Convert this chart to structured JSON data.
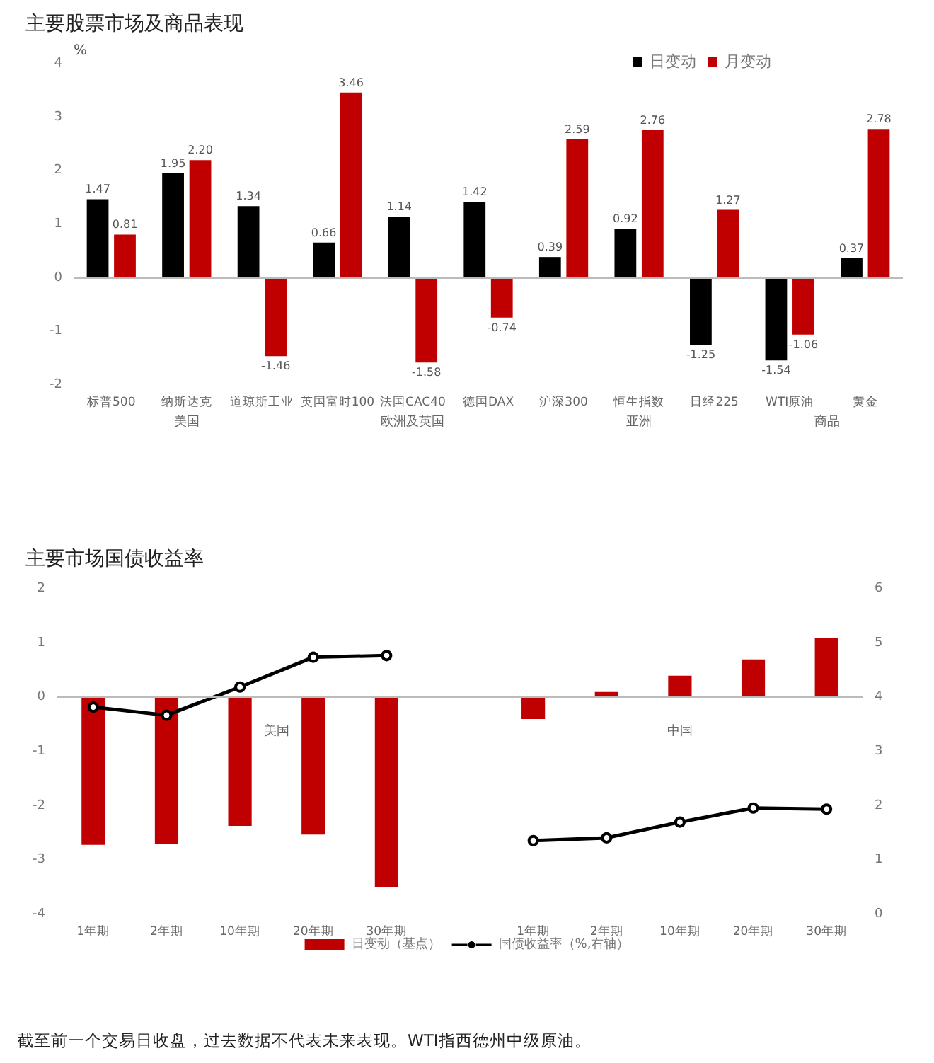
{
  "chart_data": [
    {
      "type": "bar",
      "title": "主要股票市场及商品表现",
      "ylabel": "%",
      "categories": [
        "标普500",
        "纳斯达克",
        "道琼斯工业",
        "英国富时100",
        "法国CAC40",
        "德国DAX",
        "沪深300",
        "恒生指数",
        "日经225",
        "WTI原油",
        "黄金"
      ],
      "series": [
        {
          "name": "日变动",
          "color": "#000000",
          "values": [
            1.47,
            1.95,
            1.34,
            0.66,
            1.14,
            1.42,
            0.39,
            0.92,
            -1.25,
            -1.54,
            0.37
          ],
          "value_labels": [
            "1.47",
            "1.95",
            "1.34",
            "0.66",
            "1.14",
            "1.42",
            "0.39",
            "0.92",
            "-1.25",
            "-1.54",
            "0.37"
          ]
        },
        {
          "name": "月变动",
          "color": "#c00000",
          "values": [
            0.81,
            2.2,
            -1.46,
            3.46,
            -1.58,
            -0.74,
            2.59,
            2.76,
            1.27,
            -1.06,
            2.78
          ],
          "value_labels": [
            "0.81",
            "2.20",
            "-1.46",
            "3.46",
            "-1.58",
            "-0.74",
            "2.59",
            "2.76",
            "1.27",
            "-1.06",
            "2.78"
          ]
        }
      ],
      "ylim": [
        -2,
        4
      ],
      "yticks": [
        -2,
        -1,
        0,
        1,
        2,
        3,
        4
      ],
      "legend": "top right",
      "grid": false,
      "ref_lines": [
        {
          "axis": "y",
          "value": 0,
          "color": "#bbbbbb"
        }
      ],
      "annotations": [
        "美国",
        "欧洲及英国",
        "亚洲",
        "商品"
      ]
    },
    {
      "type": "bar",
      "title": "主要市场国债收益率",
      "categories": [
        "1年期",
        "2年期",
        "10年期",
        "20年期",
        "30年期",
        null,
        "1年期",
        "2年期",
        "10年期",
        "20年期",
        "30年期"
      ],
      "series": [
        {
          "name": "日变动（基点）",
          "type": "bar",
          "color": "#c00000",
          "values": [
            -2.72,
            -2.7,
            -2.37,
            -2.53,
            -3.5,
            null,
            -0.4,
            0.1,
            0.4,
            0.7,
            1.1
          ]
        },
        {
          "name": "国债收益率（%,右轴）",
          "type": "line",
          "axis": "y2",
          "color": "#000000",
          "values": [
            3.82,
            3.67,
            4.19,
            4.74,
            4.77,
            null,
            1.36,
            1.41,
            1.7,
            1.96,
            1.94
          ]
        }
      ],
      "ylim": [
        -4,
        2
      ],
      "yticks": [
        -4,
        -3,
        -2,
        -1,
        0,
        1,
        2
      ],
      "y2lim": [
        0,
        6
      ],
      "y2ticks": [
        0,
        1,
        2,
        3,
        4,
        5,
        6
      ],
      "legend": "bottom",
      "grid": false,
      "marker": "circle",
      "line_style": "solid",
      "ref_lines": [
        {
          "axis": "y",
          "value": 0,
          "color": "#bbbbbb"
        }
      ],
      "annotations": [
        "美国",
        "中国",
        "截至前一个交易日收盘，过去数据不代表未来表现。WTI指西德州中级原油。"
      ]
    }
  ]
}
